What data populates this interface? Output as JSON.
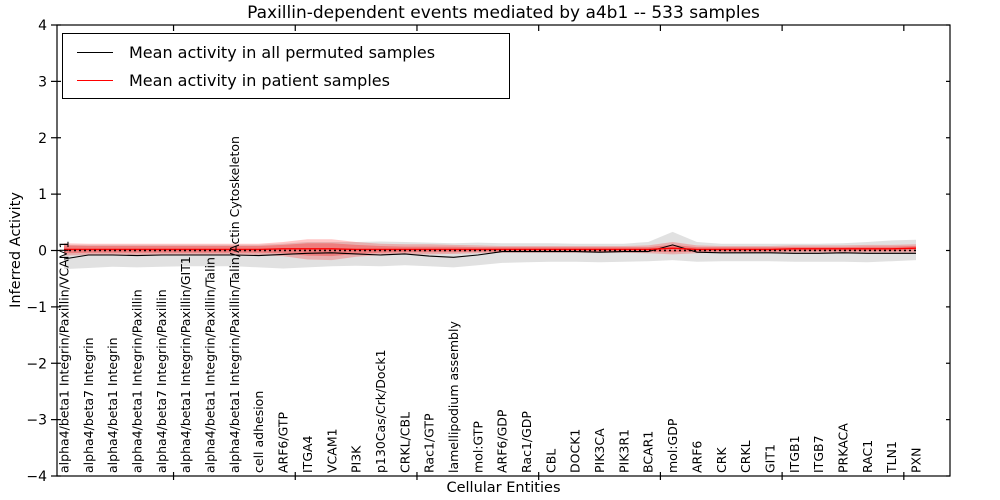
{
  "title": "Paxillin-dependent events mediated by a4b1 -- 533 samples",
  "legend": {
    "items": [
      {
        "label": "Mean activity in all permuted samples",
        "color": "#000000"
      },
      {
        "label": "Mean activity in patient samples",
        "color": "#ff0000"
      }
    ]
  },
  "chart_data": {
    "type": "line",
    "title": "Paxillin-dependent events mediated by a4b1 -- 533 samples",
    "xlabel": "Cellular Entities",
    "ylabel": "Inferred Activity",
    "ylim": [
      -4,
      4
    ],
    "grid": false,
    "legend_position": "upper left",
    "y_ticks": [
      {
        "value": 4,
        "label": "4"
      },
      {
        "value": 3,
        "label": "3"
      },
      {
        "value": 2,
        "label": "2"
      },
      {
        "value": 1,
        "label": "1"
      },
      {
        "value": 0,
        "label": "0"
      },
      {
        "value": -1,
        "label": "−1"
      },
      {
        "value": -2,
        "label": "−2"
      },
      {
        "value": -3,
        "label": "−3"
      },
      {
        "value": -4,
        "label": "−4"
      }
    ],
    "x_tick_positions": [
      4.5,
      9.5,
      14.5,
      19.5,
      24.5,
      29.5,
      34.5
    ],
    "categories": [
      "alpha4/beta1 Integrin/Paxillin/VCAM1",
      "alpha4/beta7 Integrin",
      "alpha4/beta1 Integrin",
      "alpha4/beta1 Integrin/Paxillin",
      "alpha4/beta7 Integrin/Paxillin",
      "alpha4/beta1 Integrin/Paxillin/GIT1",
      "alpha4/beta1 Integrin/Paxillin/Talin",
      "alpha4/beta1 Integrin/Paxillin/Talin/Actin Cytoskeleton",
      "cell adhesion",
      "ARF6/GTP",
      "ITGA4",
      "VCAM1",
      "PI3K",
      "p130Cas/Crk/Dock1",
      "CRKL/CBL",
      "Rac1/GTP",
      "lamellipodium assembly",
      "mol:GTP",
      "ARF6/GDP",
      "Rac1/GDP",
      "CBL",
      "DOCK1",
      "PIK3CA",
      "PIK3R1",
      "BCAR1",
      "mol:GDP",
      "ARF6",
      "CRK",
      "CRKL",
      "GIT1",
      "ITGB1",
      "ITGB7",
      "PRKACA",
      "RAC1",
      "TLN1",
      "PXN"
    ],
    "series": [
      {
        "id": "permuted",
        "name": "Mean activity in all permuted samples",
        "color": "#000000",
        "width": 1.1,
        "values": [
          -0.15,
          -0.08,
          -0.08,
          -0.09,
          -0.08,
          -0.08,
          -0.08,
          -0.08,
          -0.09,
          -0.07,
          -0.05,
          -0.04,
          -0.06,
          -0.08,
          -0.06,
          -0.1,
          -0.12,
          -0.08,
          -0.02,
          -0.02,
          -0.02,
          -0.02,
          -0.03,
          -0.02,
          -0.02,
          0.1,
          -0.03,
          -0.04,
          -0.04,
          -0.04,
          -0.05,
          -0.05,
          -0.04,
          -0.05,
          -0.05,
          -0.05
        ]
      },
      {
        "id": "patient",
        "name": "Mean activity in patient samples",
        "color": "#ff0000",
        "width": 1.4,
        "values": [
          0.02,
          0.02,
          0.02,
          0.02,
          0.02,
          0.02,
          0.02,
          0.02,
          0.02,
          0.03,
          0.03,
          0.03,
          0.02,
          0.02,
          0.02,
          0.02,
          0.02,
          0.02,
          0.02,
          0.02,
          0.02,
          0.02,
          0.02,
          0.02,
          0.02,
          0.04,
          0.02,
          0.02,
          0.02,
          0.02,
          0.03,
          0.03,
          0.03,
          0.03,
          0.03,
          0.04
        ]
      }
    ],
    "bands": [
      {
        "id": "permuted-range",
        "color": "#777777",
        "opacity": 0.22,
        "upper": [
          0.1,
          0.1,
          0.1,
          0.1,
          0.1,
          0.1,
          0.1,
          0.1,
          0.1,
          0.12,
          0.15,
          0.15,
          0.15,
          0.16,
          0.15,
          0.14,
          0.13,
          0.14,
          0.13,
          0.13,
          0.13,
          0.12,
          0.12,
          0.12,
          0.15,
          0.33,
          0.15,
          0.12,
          0.12,
          0.12,
          0.12,
          0.12,
          0.13,
          0.15,
          0.18,
          0.19
        ],
        "lower": [
          -0.33,
          -0.31,
          -0.29,
          -0.3,
          -0.29,
          -0.28,
          -0.28,
          -0.28,
          -0.3,
          -0.32,
          -0.3,
          -0.28,
          -0.27,
          -0.28,
          -0.26,
          -0.28,
          -0.3,
          -0.26,
          -0.22,
          -0.21,
          -0.2,
          -0.2,
          -0.21,
          -0.2,
          -0.19,
          -0.17,
          -0.2,
          -0.19,
          -0.19,
          -0.19,
          -0.2,
          -0.2,
          -0.2,
          -0.21,
          -0.19,
          -0.17
        ]
      },
      {
        "id": "patient-range-outer",
        "color": "#ff0000",
        "opacity": 0.22,
        "upper": [
          0.13,
          0.12,
          0.12,
          0.12,
          0.12,
          0.12,
          0.12,
          0.12,
          0.12,
          0.15,
          0.2,
          0.2,
          0.15,
          0.12,
          0.11,
          0.11,
          0.1,
          0.09,
          0.08,
          0.08,
          0.08,
          0.08,
          0.08,
          0.08,
          0.09,
          0.15,
          0.09,
          0.08,
          0.08,
          0.08,
          0.09,
          0.09,
          0.09,
          0.1,
          0.1,
          0.11
        ],
        "lower": [
          -0.09,
          -0.08,
          -0.08,
          -0.08,
          -0.08,
          -0.08,
          -0.08,
          -0.08,
          -0.08,
          -0.1,
          -0.16,
          -0.17,
          -0.11,
          -0.08,
          -0.07,
          -0.07,
          -0.06,
          -0.05,
          -0.04,
          -0.04,
          -0.04,
          -0.04,
          -0.04,
          -0.04,
          -0.05,
          -0.07,
          -0.05,
          -0.04,
          -0.04,
          -0.04,
          -0.04,
          -0.04,
          -0.04,
          -0.04,
          -0.04,
          -0.04
        ]
      },
      {
        "id": "patient-range-inner",
        "color": "#ff0000",
        "opacity": 0.28,
        "upper": [
          0.09,
          0.08,
          0.08,
          0.08,
          0.08,
          0.08,
          0.08,
          0.08,
          0.08,
          0.1,
          0.13,
          0.13,
          0.1,
          0.08,
          0.07,
          0.07,
          0.07,
          0.06,
          0.06,
          0.06,
          0.06,
          0.06,
          0.06,
          0.06,
          0.06,
          0.1,
          0.06,
          0.06,
          0.06,
          0.06,
          0.06,
          0.06,
          0.06,
          0.07,
          0.07,
          0.08
        ],
        "lower": [
          -0.05,
          -0.04,
          -0.04,
          -0.04,
          -0.04,
          -0.04,
          -0.04,
          -0.04,
          -0.04,
          -0.05,
          -0.09,
          -0.1,
          -0.06,
          -0.04,
          -0.03,
          -0.03,
          -0.03,
          -0.02,
          -0.02,
          -0.02,
          -0.02,
          -0.02,
          -0.02,
          -0.02,
          -0.02,
          -0.03,
          -0.02,
          -0.02,
          -0.02,
          -0.02,
          -0.01,
          -0.01,
          -0.01,
          -0.01,
          -0.01,
          0.0
        ]
      }
    ],
    "zero_line": {
      "value": 0,
      "color": "#000000",
      "style": "dotted"
    }
  }
}
